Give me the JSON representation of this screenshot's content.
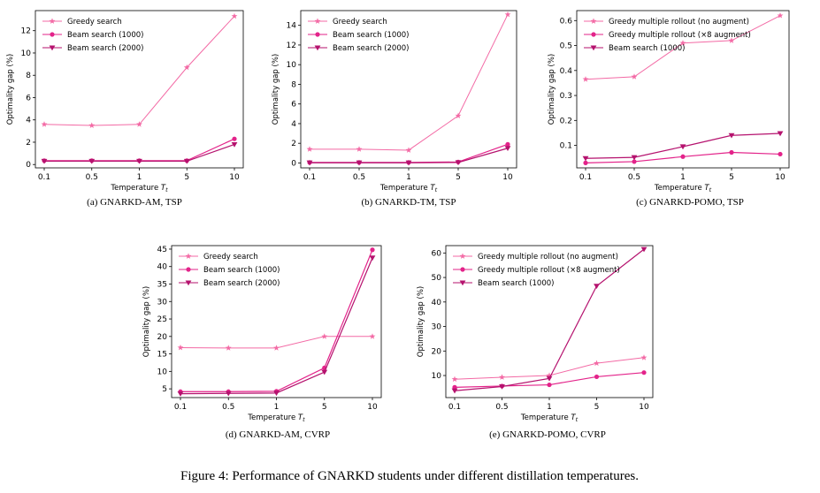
{
  "figure_caption": "Figure 4: Performance of GNARKD students under different distillation temperatures.",
  "colors": {
    "greedy": "#f36aa5",
    "beam1": "#e3238a",
    "beam2": "#b5126e"
  },
  "chart_data": [
    {
      "id": "a",
      "type": "line",
      "caption": "(a)  GNARKD-AM, TSP",
      "categories": [
        "0.1",
        "0.5",
        "1",
        "5",
        "10"
      ],
      "xlabel": "Temperature T_t",
      "ylabel": "Optimality gap (%)",
      "ylim": [
        -0.3,
        13.8
      ],
      "yticks": [
        0,
        2,
        4,
        6,
        8,
        10,
        12
      ],
      "legend": "top-left",
      "series": [
        {
          "name": "Greedy search",
          "marker": "star",
          "values": [
            3.6,
            3.5,
            3.6,
            8.7,
            13.3
          ]
        },
        {
          "name": "Beam search (1000)",
          "marker": "circle",
          "values": [
            0.35,
            0.35,
            0.35,
            0.35,
            2.3
          ]
        },
        {
          "name": "Beam search (2000)",
          "marker": "tri",
          "values": [
            0.3,
            0.3,
            0.3,
            0.3,
            1.8
          ]
        }
      ]
    },
    {
      "id": "b",
      "type": "line",
      "caption": "(b)  GNARKD-TM, TSP",
      "categories": [
        "0.1",
        "0.5",
        "1",
        "5",
        "10"
      ],
      "xlabel": "Temperature T_t",
      "ylabel": "Optimality gap (%)",
      "ylim": [
        -0.5,
        15.5
      ],
      "yticks": [
        0,
        2,
        4,
        6,
        8,
        10,
        12,
        14
      ],
      "legend": "top-left",
      "series": [
        {
          "name": "Greedy search",
          "marker": "star",
          "values": [
            1.4,
            1.4,
            1.3,
            4.8,
            15.1
          ]
        },
        {
          "name": "Beam search (1000)",
          "marker": "circle",
          "values": [
            0.05,
            0.05,
            0.05,
            0.1,
            1.9
          ]
        },
        {
          "name": "Beam search (2000)",
          "marker": "tri",
          "values": [
            0.02,
            0.02,
            0.02,
            0.05,
            1.5
          ]
        }
      ]
    },
    {
      "id": "c",
      "type": "line",
      "caption": "(c)  GNARKD-POMO, TSP",
      "categories": [
        "0.1",
        "0.5",
        "1",
        "5",
        "10"
      ],
      "xlabel": "Temperature T_t",
      "ylabel": "Optimality gap (%)",
      "ylim": [
        0.01,
        0.64
      ],
      "yticks": [
        0.1,
        0.2,
        0.3,
        0.4,
        0.5,
        0.6
      ],
      "legend": "top-left",
      "series": [
        {
          "name": "Greedy multiple rollout (no augment)",
          "marker": "star",
          "values": [
            0.365,
            0.375,
            0.51,
            0.52,
            0.62
          ]
        },
        {
          "name": "Greedy multiple rollout (×8 augment)",
          "marker": "circle",
          "values": [
            0.03,
            0.035,
            0.055,
            0.072,
            0.065
          ]
        },
        {
          "name": "Beam search (1000)",
          "marker": "tri",
          "values": [
            0.048,
            0.052,
            0.095,
            0.14,
            0.148
          ]
        }
      ]
    },
    {
      "id": "d",
      "type": "line",
      "caption": "(d)  GNARKD-AM, CVRP",
      "categories": [
        "0.1",
        "0.5",
        "1",
        "5",
        "10"
      ],
      "xlabel": "Temperature T_t",
      "ylabel": "Optimality gap (%)",
      "ylim": [
        2.5,
        46
      ],
      "yticks": [
        5,
        10,
        15,
        20,
        25,
        30,
        35,
        40,
        45
      ],
      "legend": "top-left",
      "series": [
        {
          "name": "Greedy search",
          "marker": "star",
          "values": [
            16.8,
            16.7,
            16.7,
            20.0,
            20.0
          ]
        },
        {
          "name": "Beam search (1000)",
          "marker": "circle",
          "values": [
            4.2,
            4.2,
            4.3,
            11.0,
            44.8
          ]
        },
        {
          "name": "Beam search (2000)",
          "marker": "tri",
          "values": [
            3.6,
            3.7,
            3.8,
            9.8,
            42.5
          ]
        }
      ]
    },
    {
      "id": "e",
      "type": "line",
      "caption": "(e)  GNARKD-POMO, CVRP",
      "categories": [
        "0.1",
        "0.5",
        "1",
        "5",
        "10"
      ],
      "xlabel": "Temperature T_t",
      "ylabel": "Optimality gap (%)",
      "ylim": [
        1,
        63
      ],
      "yticks": [
        10,
        20,
        30,
        40,
        50,
        60
      ],
      "legend": "top-left",
      "series": [
        {
          "name": "Greedy multiple rollout (no augment)",
          "marker": "star",
          "values": [
            8.5,
            9.3,
            10.0,
            15.0,
            17.3
          ]
        },
        {
          "name": "Greedy multiple rollout (×8 augment)",
          "marker": "circle",
          "values": [
            5.2,
            5.7,
            6.2,
            9.5,
            11.2
          ]
        },
        {
          "name": "Beam search (1000)",
          "marker": "tri",
          "values": [
            3.8,
            5.5,
            8.8,
            46.5,
            61.5
          ]
        }
      ]
    }
  ]
}
